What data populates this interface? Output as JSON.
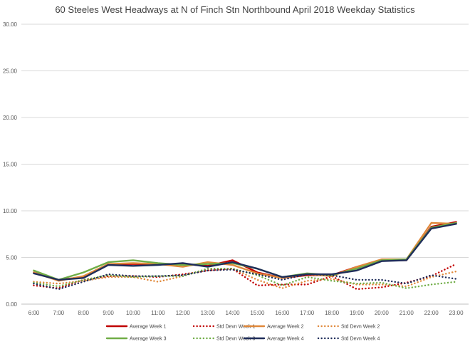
{
  "chart_data": {
    "type": "line",
    "title": "60 Steeles West Headways at N of Finch Stn Northbound April 2018 Weekday Statistics",
    "xlabel": "",
    "ylabel": "",
    "ylim": [
      0,
      30
    ],
    "yticks": [
      "0.00",
      "5.00",
      "10.00",
      "15.00",
      "20.00",
      "25.00",
      "30.00"
    ],
    "categories": [
      "6:00",
      "7:00",
      "8:00",
      "9:00",
      "10:00",
      "11:00",
      "12:00",
      "13:00",
      "14:00",
      "15:00",
      "16:00",
      "17:00",
      "18:00",
      "19:00",
      "20:00",
      "21:00",
      "22:00",
      "23:00"
    ],
    "grid": true,
    "legend_position": "bottom",
    "series": [
      {
        "name": "Average Week 1",
        "color": "#c00000",
        "dash": "solid",
        "values": [
          3.4,
          2.6,
          2.9,
          4.3,
          4.3,
          4.3,
          4.3,
          4.1,
          4.7,
          3.4,
          2.8,
          3.1,
          3.1,
          4.0,
          4.7,
          4.7,
          8.3,
          8.8
        ]
      },
      {
        "name": "Std Devn Week 1",
        "color": "#c00000",
        "dash": "dotted",
        "values": [
          2.0,
          1.7,
          2.6,
          3.0,
          3.0,
          2.9,
          3.2,
          3.6,
          3.8,
          2.0,
          2.1,
          2.1,
          3.0,
          1.6,
          1.8,
          2.3,
          3.0,
          4.3
        ]
      },
      {
        "name": "Average Week 2",
        "color": "#e0883a",
        "dash": "solid",
        "values": [
          3.4,
          2.5,
          3.0,
          4.3,
          4.4,
          4.3,
          4.0,
          4.5,
          4.2,
          3.3,
          2.8,
          3.2,
          3.0,
          4.0,
          4.8,
          4.8,
          8.7,
          8.6
        ]
      },
      {
        "name": "Std Devn Week 2",
        "color": "#e0883a",
        "dash": "dotted",
        "values": [
          2.4,
          2.2,
          2.5,
          2.9,
          2.9,
          2.4,
          3.0,
          3.8,
          3.8,
          2.6,
          1.7,
          2.5,
          2.7,
          2.1,
          2.1,
          1.9,
          2.9,
          3.5
        ]
      },
      {
        "name": "Average Week 3",
        "color": "#70ad47",
        "dash": "solid",
        "values": [
          3.6,
          2.6,
          3.4,
          4.5,
          4.7,
          4.4,
          4.2,
          4.3,
          4.4,
          3.8,
          2.9,
          3.3,
          3.1,
          3.8,
          4.7,
          4.8,
          8.2,
          8.7
        ]
      },
      {
        "name": "Std Devn Week 3",
        "color": "#70ad47",
        "dash": "dotted",
        "values": [
          2.3,
          1.9,
          2.6,
          3.1,
          2.9,
          3.0,
          3.0,
          3.8,
          3.8,
          3.1,
          2.0,
          2.9,
          2.5,
          2.2,
          2.3,
          1.7,
          2.1,
          2.4
        ]
      },
      {
        "name": "Average Week 4",
        "color": "#1f2d5a",
        "dash": "solid",
        "values": [
          3.3,
          2.6,
          2.8,
          4.2,
          4.1,
          4.2,
          4.4,
          4.0,
          4.5,
          3.8,
          2.9,
          3.2,
          3.2,
          3.6,
          4.6,
          4.7,
          8.1,
          8.6
        ]
      },
      {
        "name": "Std Devn Week 4",
        "color": "#1f2d5a",
        "dash": "dotted",
        "values": [
          2.2,
          1.6,
          2.4,
          3.2,
          3.0,
          3.0,
          3.1,
          3.6,
          3.7,
          3.2,
          2.6,
          3.2,
          3.1,
          2.6,
          2.6,
          2.2,
          3.1,
          2.7
        ]
      }
    ]
  }
}
